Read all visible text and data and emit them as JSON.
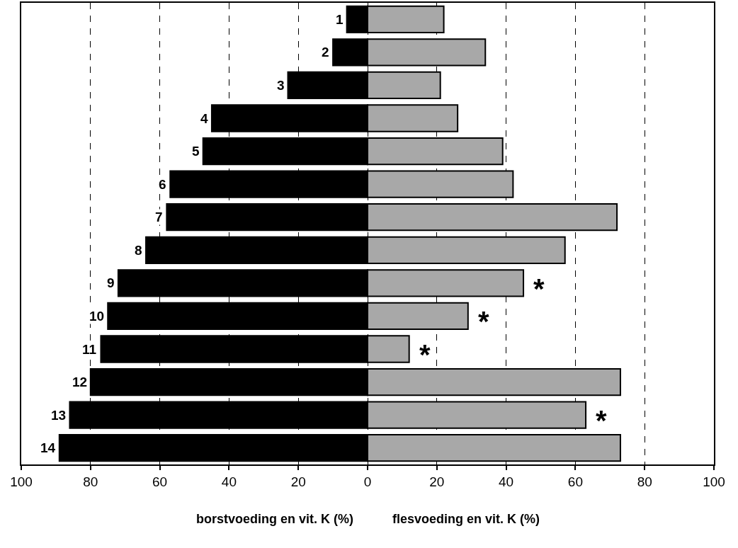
{
  "chart_data": {
    "type": "bar",
    "orientation": "horizontal",
    "categories": [
      "1",
      "2",
      "3",
      "4",
      "5",
      "6",
      "7",
      "8",
      "9",
      "10",
      "11",
      "12",
      "13",
      "14"
    ],
    "series": [
      {
        "color": "#000000",
        "values": [
          -6,
          -10,
          -23,
          -45,
          -47.5,
          -57,
          -58,
          -64,
          -72,
          -75,
          -77,
          -80,
          -86,
          -89
        ]
      },
      {
        "color": "#a8a8a8",
        "values": [
          22,
          34,
          21,
          26,
          39,
          42,
          72,
          57,
          45,
          29,
          12,
          73,
          63,
          73
        ]
      }
    ],
    "xlim": [
      -100,
      100
    ],
    "xticks": [
      {
        "value": -100,
        "label": "100"
      },
      {
        "value": -80,
        "label": "80"
      },
      {
        "value": -60,
        "label": "60"
      },
      {
        "value": -40,
        "label": "40"
      },
      {
        "value": -20,
        "label": "20"
      },
      0,
      20,
      40,
      60,
      80,
      100
    ],
    "grid": "x",
    "tick_labels": "x",
    "stacked": true,
    "annotations": [
      "borstvoeding en vit. K (%)",
      "flesvoeding en vit. K (%)",
      {
        "text": "*",
        "x": 45,
        "y": "9"
      },
      {
        "text": "*",
        "x": 29,
        "y": "10"
      },
      {
        "text": "*",
        "x": 12,
        "y": "11"
      },
      {
        "text": "*",
        "x": 63,
        "y": "13"
      }
    ]
  }
}
